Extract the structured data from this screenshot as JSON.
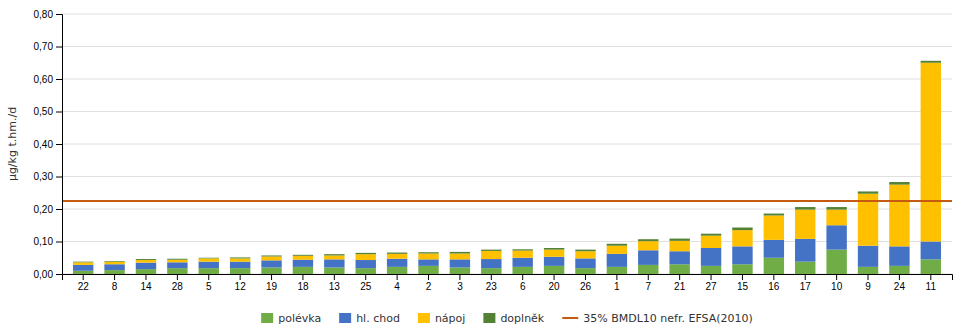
{
  "chart_data": {
    "type": "bar",
    "stacked": true,
    "y_label": "µg/kg t.hm./d",
    "categories": [
      "22",
      "8",
      "14",
      "28",
      "5",
      "12",
      "19",
      "18",
      "13",
      "25",
      "4",
      "2",
      "3",
      "23",
      "6",
      "20",
      "26",
      "1",
      "7",
      "21",
      "27",
      "15",
      "16",
      "17",
      "10",
      "9",
      "24",
      "11"
    ],
    "series": [
      {
        "name": "polévka",
        "color": "#70ad47",
        "values": [
          0.01,
          0.012,
          0.015,
          0.018,
          0.018,
          0.018,
          0.02,
          0.022,
          0.02,
          0.018,
          0.022,
          0.025,
          0.02,
          0.018,
          0.022,
          0.025,
          0.018,
          0.022,
          0.028,
          0.03,
          0.025,
          0.03,
          0.05,
          0.038,
          0.075,
          0.022,
          0.025,
          0.045
        ]
      },
      {
        "name": "hl. chod",
        "color": "#4472c4",
        "values": [
          0.018,
          0.018,
          0.02,
          0.018,
          0.02,
          0.02,
          0.022,
          0.022,
          0.025,
          0.025,
          0.025,
          0.02,
          0.025,
          0.028,
          0.028,
          0.028,
          0.03,
          0.04,
          0.045,
          0.04,
          0.055,
          0.055,
          0.055,
          0.07,
          0.075,
          0.065,
          0.06,
          0.055
        ]
      },
      {
        "name": "nápoj",
        "color": "#ffc000",
        "values": [
          0.008,
          0.008,
          0.008,
          0.008,
          0.01,
          0.01,
          0.012,
          0.012,
          0.012,
          0.018,
          0.015,
          0.018,
          0.018,
          0.025,
          0.022,
          0.022,
          0.022,
          0.025,
          0.028,
          0.032,
          0.038,
          0.05,
          0.075,
          0.09,
          0.048,
          0.16,
          0.19,
          0.55
        ]
      },
      {
        "name": "doplněk",
        "color": "#548235",
        "values": [
          0.002,
          0.002,
          0.003,
          0.003,
          0.002,
          0.003,
          0.003,
          0.003,
          0.004,
          0.004,
          0.004,
          0.004,
          0.005,
          0.004,
          0.004,
          0.005,
          0.005,
          0.006,
          0.006,
          0.007,
          0.006,
          0.008,
          0.006,
          0.008,
          0.008,
          0.007,
          0.008,
          0.006
        ]
      }
    ],
    "reference_line": {
      "value": 0.225,
      "name": "35% BMDL10 nefr. EFSA(2010)",
      "color": "#c55a11"
    },
    "ylim": [
      0.0,
      0.8
    ],
    "yticks": [
      {
        "value": 0.0,
        "label": "0,00"
      },
      {
        "value": 0.1,
        "label": "0,10"
      },
      {
        "value": 0.2,
        "label": "0,20"
      },
      {
        "value": 0.3,
        "label": "0,30"
      },
      {
        "value": 0.4,
        "label": "0,40"
      },
      {
        "value": 0.5,
        "label": "0,50"
      },
      {
        "value": 0.6,
        "label": "0,60"
      },
      {
        "value": 0.7,
        "label": "0,70"
      },
      {
        "value": 0.8,
        "label": "0,80"
      }
    ],
    "grid": true,
    "legend": "bottom"
  }
}
